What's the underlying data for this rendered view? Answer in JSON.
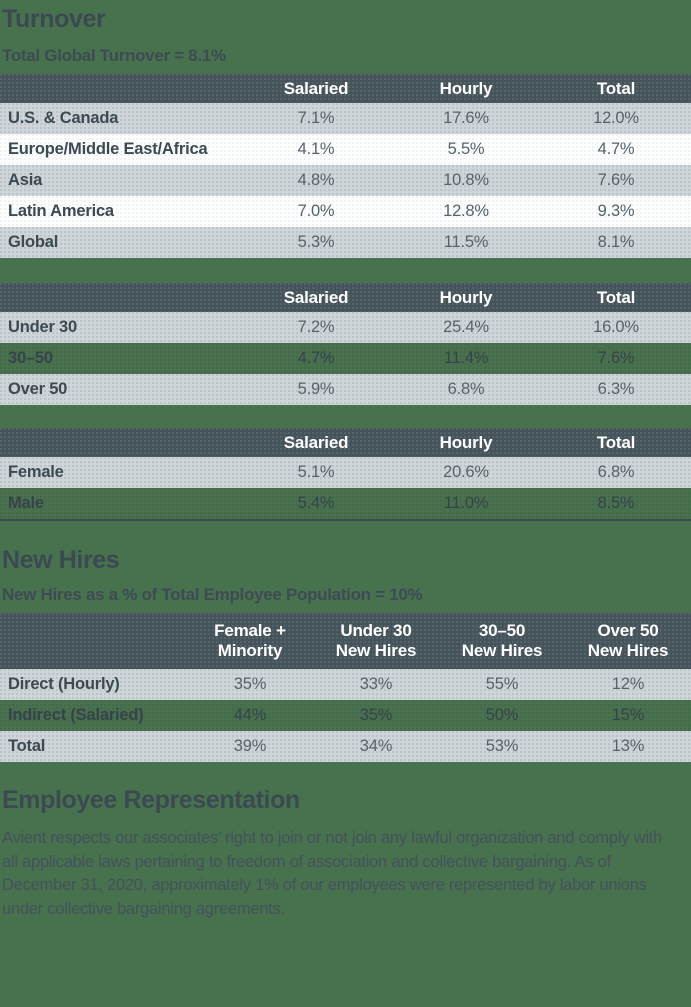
{
  "colors": {
    "page_background": "#48714e",
    "table_header_background": "#45535a",
    "row_gray": "#cfd6da",
    "row_white": "#fdfefe",
    "heading_text": "#3b4a52",
    "value_text": "#56636b",
    "header_text": "#ffffff",
    "gender_table_bottom_rule": "#3e4b53"
  },
  "turnover": {
    "title": "Turnover",
    "subtitle": "Total Global Turnover = 8.1%",
    "columns": [
      "Salaried",
      "Hourly",
      "Total"
    ],
    "by_region": {
      "rows": [
        {
          "label": "U.S. & Canada",
          "values": [
            "7.1%",
            "17.6%",
            "12.0%"
          ]
        },
        {
          "label": "Europe/Middle East/Africa",
          "values": [
            "4.1%",
            "5.5%",
            "4.7%"
          ]
        },
        {
          "label": "Asia",
          "values": [
            "4.8%",
            "10.8%",
            "7.6%"
          ]
        },
        {
          "label": "Latin America",
          "values": [
            "7.0%",
            "12.8%",
            "9.3%"
          ]
        },
        {
          "label": "Global",
          "values": [
            "5.3%",
            "11.5%",
            "8.1%"
          ]
        }
      ]
    },
    "by_age": {
      "rows": [
        {
          "label": "Under 30",
          "values": [
            "7.2%",
            "25.4%",
            "16.0%"
          ]
        },
        {
          "label": "30–50",
          "values": [
            "4.7%",
            "11.4%",
            "7.6%"
          ]
        },
        {
          "label": "Over 50",
          "values": [
            "5.9%",
            "6.8%",
            "6.3%"
          ]
        }
      ]
    },
    "by_gender": {
      "rows": [
        {
          "label": "Female",
          "values": [
            "5.1%",
            "20.6%",
            "6.8%"
          ]
        },
        {
          "label": "Male",
          "values": [
            "5.4%",
            "11.0%",
            "8.5%"
          ]
        }
      ]
    }
  },
  "new_hires": {
    "title": "New Hires",
    "subtitle": "New Hires as a % of Total Employee Population = 10%",
    "columns": [
      {
        "line1": "Female +",
        "line2": "Minority"
      },
      {
        "line1": "Under 30",
        "line2": "New Hires"
      },
      {
        "line1": "30–50",
        "line2": "New Hires"
      },
      {
        "line1": "Over 50",
        "line2": "New Hires"
      }
    ],
    "rows": [
      {
        "label": "Direct (Hourly)",
        "values": [
          "35%",
          "33%",
          "55%",
          "12%"
        ]
      },
      {
        "label": "Indirect (Salaried)",
        "values": [
          "44%",
          "35%",
          "50%",
          "15%"
        ]
      },
      {
        "label": "Total",
        "values": [
          "39%",
          "34%",
          "53%",
          "13%"
        ]
      }
    ]
  },
  "employee_representation": {
    "title": "Employee Representation",
    "body": "Avient respects our associates’ right to join or not join any lawful organization and comply with all applicable laws pertaining to freedom of association and collective bargaining. As of December 31, 2020, approximately 1% of our employees were represented by labor unions under collective bargaining agreements."
  }
}
